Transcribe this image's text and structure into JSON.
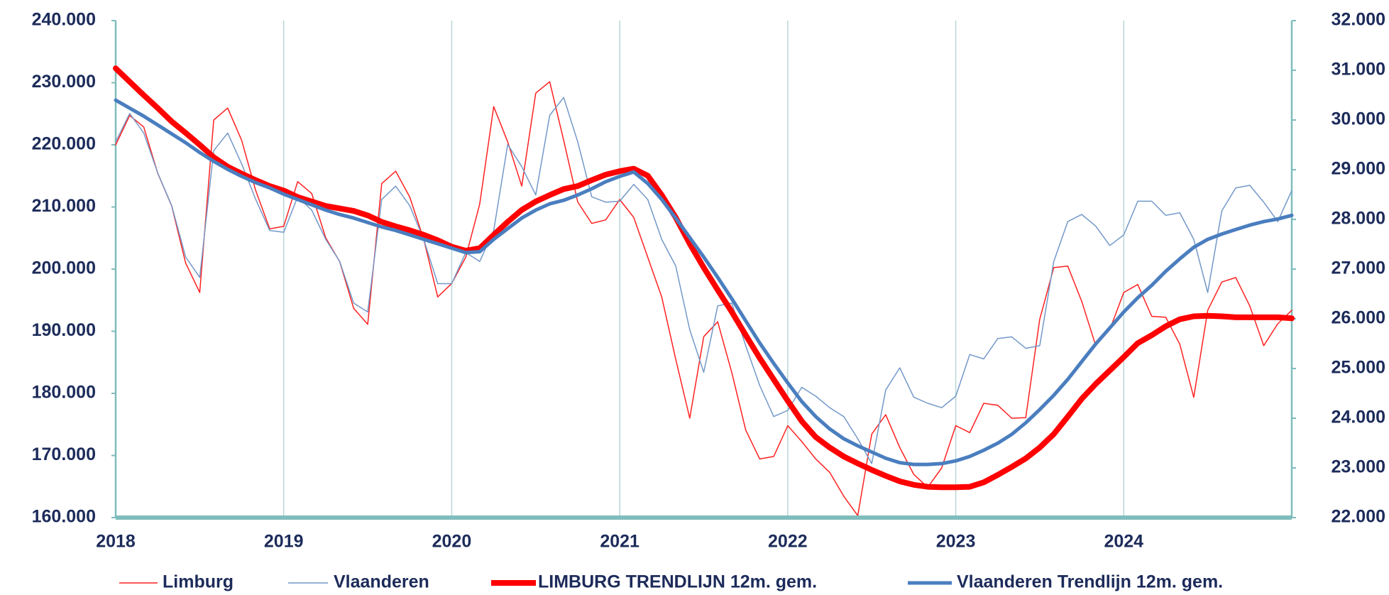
{
  "chart_data": {
    "type": "line",
    "categories": [
      "2018",
      null,
      null,
      null,
      null,
      null,
      null,
      null,
      null,
      null,
      null,
      null,
      "2019",
      null,
      null,
      null,
      null,
      null,
      null,
      null,
      null,
      null,
      null,
      null,
      "2020",
      null,
      null,
      null,
      null,
      null,
      null,
      null,
      null,
      null,
      null,
      null,
      "2021",
      null,
      null,
      null,
      null,
      null,
      null,
      null,
      null,
      null,
      null,
      null,
      "2022",
      null,
      null,
      null,
      null,
      null,
      null,
      null,
      null,
      null,
      null,
      null,
      "2023",
      null,
      null,
      null,
      null,
      null,
      null,
      null,
      null,
      null,
      null,
      null,
      "2024",
      null,
      null,
      null,
      null,
      null,
      null,
      null,
      null,
      null,
      null,
      null,
      null
    ],
    "ylim": [
      160000,
      240000
    ],
    "yticks": [
      {
        "value": 160000,
        "label": "160.000"
      },
      {
        "value": 170000,
        "label": "170.000"
      },
      {
        "value": 180000,
        "label": "180.000"
      },
      {
        "value": 190000,
        "label": "190.000"
      },
      {
        "value": 200000,
        "label": "200.000"
      },
      {
        "value": 210000,
        "label": "210.000"
      },
      {
        "value": 220000,
        "label": "220.000"
      },
      {
        "value": 230000,
        "label": "230.000"
      },
      {
        "value": 240000,
        "label": "240.000"
      }
    ],
    "y2lim": [
      22000,
      32000
    ],
    "y2ticks": [
      {
        "value": 22000,
        "label": "22.000"
      },
      {
        "value": 23000,
        "label": "23.000"
      },
      {
        "value": 24000,
        "label": "24.000"
      },
      {
        "value": 25000,
        "label": "25.000"
      },
      {
        "value": 26000,
        "label": "26.000"
      },
      {
        "value": 27000,
        "label": "27.000"
      },
      {
        "value": 28000,
        "label": "28.000"
      },
      {
        "value": 29000,
        "label": "29.000"
      },
      {
        "value": 30000,
        "label": "30.000"
      },
      {
        "value": 31000,
        "label": "31.000"
      },
      {
        "value": 32000,
        "label": "32.000"
      }
    ],
    "xgrid": true,
    "legend": "bottom",
    "series": [
      {
        "name": "Limburg",
        "color": "#ff2020",
        "width": 1.5,
        "axis": "y2",
        "values": [
          29500,
          30090,
          29860,
          28930,
          28270,
          27120,
          26530,
          30000,
          30240,
          29590,
          28580,
          27810,
          27860,
          28760,
          28520,
          27630,
          27150,
          26210,
          25890,
          28720,
          28970,
          28450,
          27600,
          26440,
          26710,
          27240,
          28310,
          30270,
          29560,
          28670,
          30540,
          30770,
          29590,
          28350,
          27920,
          27990,
          28400,
          28040,
          27240,
          26440,
          25190,
          24000,
          25640,
          25940,
          24920,
          23760,
          23180,
          23230,
          23850,
          23530,
          23180,
          22910,
          22430,
          22040,
          23680,
          24070,
          23410,
          22870,
          22610,
          23000,
          23850,
          23710,
          24300,
          24260,
          24000,
          24010,
          25990,
          27030,
          27060,
          26350,
          25460,
          25780,
          26530,
          26690,
          26050,
          26030,
          25490,
          24420,
          26170,
          26740,
          26830,
          26260,
          25460,
          25900,
          26170
        ]
      },
      {
        "name": "Vlaanderen",
        "color": "#7398c8",
        "width": 1.5,
        "values": [
          220480,
          225050,
          221910,
          215490,
          210210,
          201940,
          198660,
          219060,
          221910,
          216920,
          211210,
          206220,
          205930,
          211640,
          209500,
          204790,
          201230,
          194520,
          193100,
          211210,
          213350,
          210210,
          204790,
          197660,
          197660,
          202650,
          201230,
          206220,
          220060,
          216490,
          211930,
          224760,
          227620,
          220480,
          211640,
          210780,
          210930,
          213640,
          211210,
          204790,
          200510,
          190240,
          183390,
          194090,
          194520,
          187670,
          181260,
          176260,
          177260,
          180970,
          179540,
          177690,
          176260,
          172700,
          168700,
          180540,
          184110,
          179400,
          178400,
          177690,
          179540,
          186250,
          185540,
          188820,
          189100,
          187250,
          187670,
          201230,
          207650,
          208790,
          206930,
          203790,
          205500,
          210930,
          210930,
          208650,
          209070,
          204790,
          196230,
          209360,
          213070,
          213490,
          210780,
          207650,
          212640
        ]
      },
      {
        "name": "LIMBURG TRENDLIJN 12m. gem.",
        "color": "#ff0000",
        "width": 8,
        "axis": "y2",
        "values": [
          31040,
          30770,
          30500,
          30240,
          29970,
          29740,
          29500,
          29250,
          29060,
          28920,
          28790,
          28670,
          28580,
          28450,
          28360,
          28270,
          28220,
          28170,
          28080,
          27950,
          27860,
          27780,
          27690,
          27580,
          27450,
          27370,
          27420,
          27690,
          27950,
          28190,
          28360,
          28490,
          28610,
          28670,
          28790,
          28900,
          28970,
          29020,
          28880,
          28490,
          28040,
          27510,
          27030,
          26580,
          26140,
          25670,
          25210,
          24780,
          24350,
          23940,
          23620,
          23410,
          23230,
          23090,
          22960,
          22840,
          22730,
          22660,
          22620,
          22610,
          22610,
          22620,
          22710,
          22860,
          23020,
          23190,
          23410,
          23680,
          24030,
          24390,
          24690,
          24960,
          25230,
          25510,
          25670,
          25850,
          25990,
          26050,
          26060,
          26050,
          26030,
          26030,
          26030,
          26030,
          26010
        ]
      },
      {
        "name": "Vlaanderen Trendlijn 12m. gem.",
        "color": "#4a7ebf",
        "width": 5,
        "values": [
          227190,
          225910,
          224620,
          223200,
          221770,
          220340,
          218770,
          217350,
          216060,
          214920,
          213920,
          213070,
          212070,
          211210,
          210360,
          209500,
          208790,
          208220,
          207500,
          206790,
          206220,
          205510,
          204790,
          204080,
          203370,
          202650,
          202800,
          204790,
          206510,
          208220,
          209500,
          210500,
          211070,
          211930,
          212920,
          214070,
          214920,
          215630,
          213780,
          211210,
          208220,
          205080,
          201940,
          198660,
          195240,
          191670,
          188100,
          184820,
          181680,
          178690,
          176260,
          174270,
          172700,
          171560,
          170560,
          169560,
          168840,
          168560,
          168560,
          168700,
          169130,
          169840,
          170840,
          171980,
          173410,
          175260,
          177400,
          179690,
          182250,
          185110,
          187960,
          190530,
          193100,
          195380,
          197380,
          199660,
          201650,
          203510,
          204790,
          205650,
          206360,
          207080,
          207650,
          208070,
          208650
        ]
      }
    ]
  }
}
